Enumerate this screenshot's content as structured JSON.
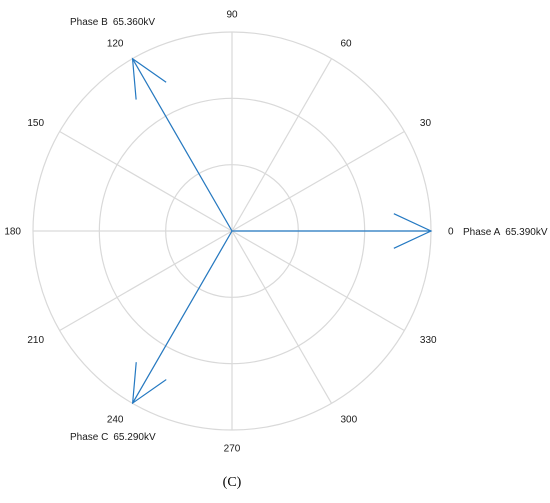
{
  "chart_data": {
    "type": "polar-phasor",
    "angle_ticks": [
      0,
      30,
      60,
      90,
      120,
      150,
      180,
      210,
      240,
      270,
      300,
      330
    ],
    "grid_rings": 3,
    "rmax": 65.39,
    "grid": true,
    "series": [
      {
        "name": "Phase A",
        "angle_deg": 0,
        "magnitude": 65.39,
        "label": "65.390kV"
      },
      {
        "name": "Phase B",
        "angle_deg": 120,
        "magnitude": 65.36,
        "label": "65.360kV"
      },
      {
        "name": "Phase C",
        "angle_deg": 240,
        "magnitude": 65.29,
        "label": "65.290kV"
      }
    ],
    "color": "#2479c2",
    "caption": "(C)"
  }
}
